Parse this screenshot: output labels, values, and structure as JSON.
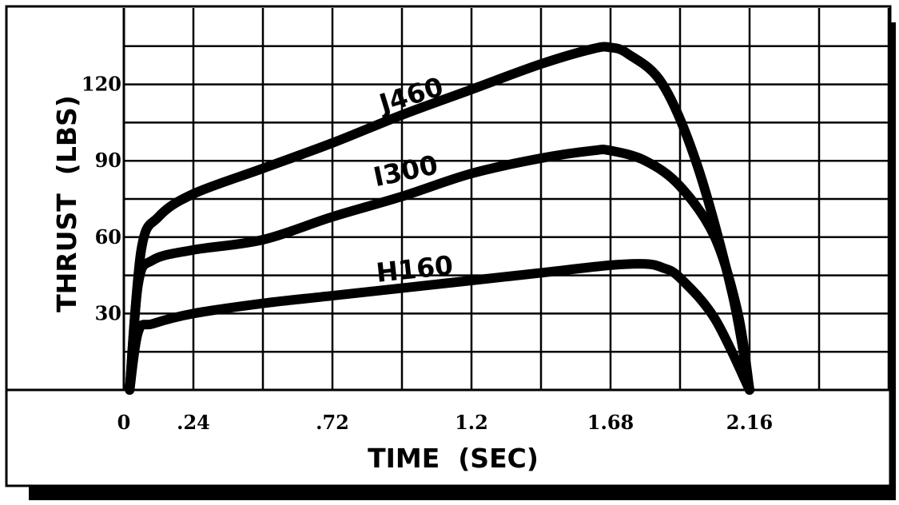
{
  "chart_data": {
    "type": "line",
    "title": "",
    "xlabel": "TIME  (SEC)",
    "ylabel": "THRUST  (LBS)",
    "xlim": [
      0,
      2.64
    ],
    "ylim": [
      0,
      150
    ],
    "x_ticks": [
      {
        "value": 0,
        "label": "0"
      },
      {
        "value": 0.24,
        "label": ".24"
      },
      {
        "value": 0.72,
        "label": ".72"
      },
      {
        "value": 1.2,
        "label": "1.2"
      },
      {
        "value": 1.68,
        "label": "1.68"
      },
      {
        "value": 2.16,
        "label": "2.16"
      }
    ],
    "y_ticks": [
      {
        "value": 30,
        "label": "30"
      },
      {
        "value": 60,
        "label": "60"
      },
      {
        "value": 90,
        "label": "90"
      },
      {
        "value": 120,
        "label": "120"
      }
    ],
    "grid": true,
    "series": [
      {
        "name": "J460",
        "x": [
          0.02,
          0.06,
          0.12,
          0.24,
          0.48,
          0.72,
          0.96,
          1.2,
          1.44,
          1.62,
          1.68,
          1.74,
          1.86,
          1.98,
          2.1,
          2.16
        ],
        "y": [
          0,
          55,
          68,
          77,
          87,
          97,
          108,
          118,
          128,
          134,
          134.5,
          132,
          120,
          88,
          38,
          0
        ]
      },
      {
        "name": "I300",
        "x": [
          0.02,
          0.05,
          0.1,
          0.24,
          0.48,
          0.72,
          0.96,
          1.2,
          1.44,
          1.62,
          1.68,
          1.8,
          1.92,
          2.04,
          2.12,
          2.16
        ],
        "y": [
          0,
          42,
          51,
          55,
          59,
          68,
          76,
          85,
          91,
          94,
          94,
          90,
          80,
          60,
          30,
          0
        ]
      },
      {
        "name": "H160",
        "x": [
          0.02,
          0.05,
          0.1,
          0.24,
          0.48,
          0.72,
          0.96,
          1.2,
          1.44,
          1.68,
          1.8,
          1.86,
          1.92,
          2.04,
          2.16
        ],
        "y": [
          0,
          23,
          26,
          30,
          34,
          37,
          40,
          43,
          46,
          49,
          49.5,
          48,
          44,
          28,
          0
        ]
      }
    ]
  }
}
